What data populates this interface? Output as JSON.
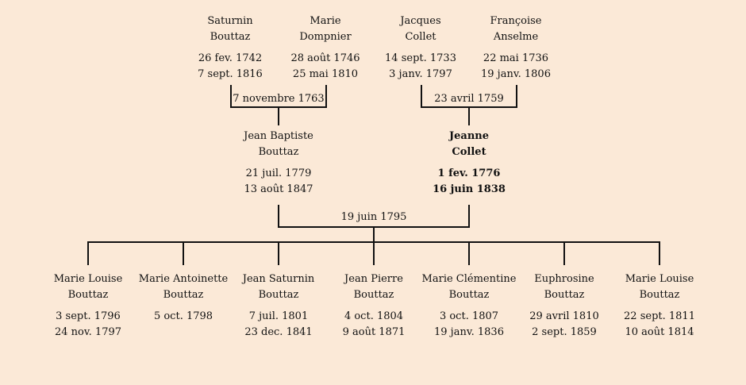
{
  "grandparents": [
    {
      "given": "Saturnin",
      "surname": "Bouttaz",
      "birth": "26 fev. 1742",
      "death": "7 sept. 1816"
    },
    {
      "given": "Marie",
      "surname": "Dompnier",
      "birth": "28 août 1746",
      "death": "25 mai 1810"
    },
    {
      "given": "Jacques",
      "surname": "Collet",
      "birth": "14 sept. 1733",
      "death": "3 janv. 1797"
    },
    {
      "given": "Françoise",
      "surname": "Anselme",
      "birth": "22 mai 1736",
      "death": "19 janv. 1806"
    }
  ],
  "marriages": {
    "paternal": "7 novembre 1763",
    "maternal": "23 avril 1759",
    "parents": "19 juin 1795"
  },
  "parents": [
    {
      "given": "Jean Baptiste",
      "surname": "Bouttaz",
      "birth": "21 juil. 1779",
      "death": "13 août 1847",
      "highlighted": false
    },
    {
      "given": "Jeanne",
      "surname": "Collet",
      "birth": "1 fev. 1776",
      "death": "16 juin 1838",
      "highlighted": true
    }
  ],
  "children": [
    {
      "given": "Marie Louise",
      "surname": "Bouttaz",
      "birth": "3 sept. 1796",
      "death": "24 nov. 1797"
    },
    {
      "given": "Marie Antoinette",
      "surname": "Bouttaz",
      "birth": "5 oct. 1798",
      "death": ""
    },
    {
      "given": "Jean Saturnin",
      "surname": "Bouttaz",
      "birth": "7 juil. 1801",
      "death": "23 dec. 1841"
    },
    {
      "given": "Jean Pierre",
      "surname": "Bouttaz",
      "birth": "4 oct. 1804",
      "death": "9 août 1871"
    },
    {
      "given": "Marie Clémentine",
      "surname": "Bouttaz",
      "birth": "3 oct. 1807",
      "death": "19 janv. 1836"
    },
    {
      "given": "Euphrosine",
      "surname": "Bouttaz",
      "birth": "29 avril 1810",
      "death": "2 sept. 1859"
    },
    {
      "given": "Marie Louise",
      "surname": "Bouttaz",
      "birth": "22 sept. 1811",
      "death": "10 août 1814"
    }
  ],
  "colors": {
    "background": "#fbe9d7",
    "line": "#111111",
    "text": "#111111"
  }
}
